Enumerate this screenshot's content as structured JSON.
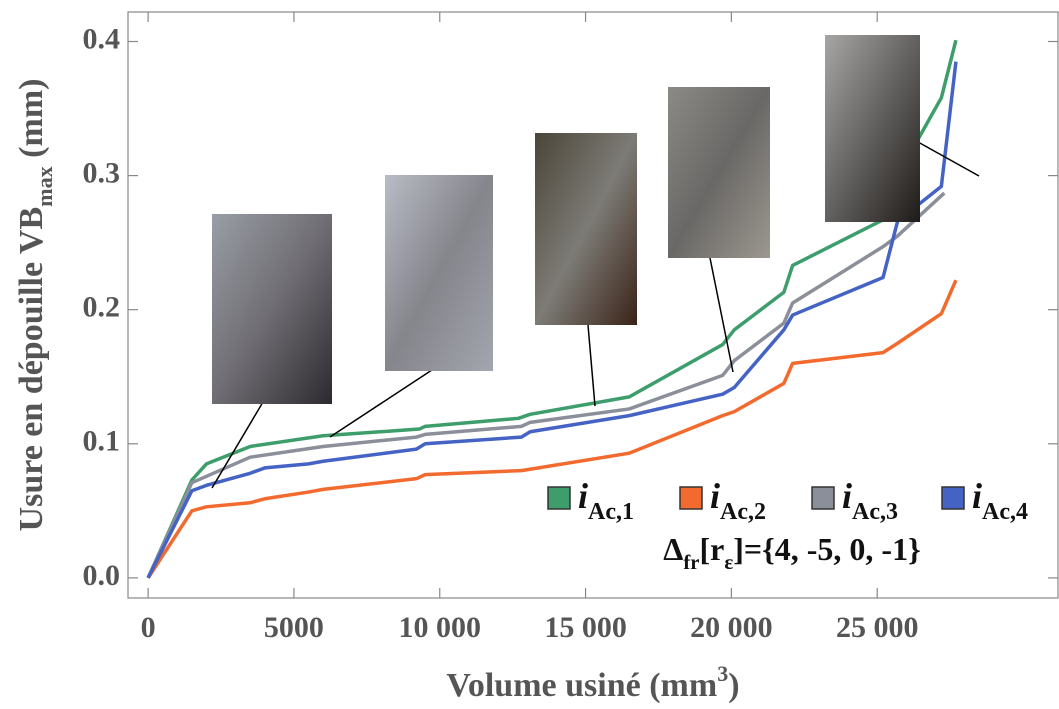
{
  "chart_data": {
    "type": "line",
    "x_label": [
      {
        "text": "Volume usiné (mm"
      },
      {
        "text": "3",
        "sup": true
      },
      {
        "text": ")"
      }
    ],
    "y_label": [
      {
        "text": "Usure en dépouille VB"
      },
      {
        "text": "max",
        "sub": true
      },
      {
        "text": " (mm)"
      }
    ],
    "annotation": [
      {
        "text": "Δ"
      },
      {
        "text": "fr",
        "sub": true
      },
      {
        "text": "[r"
      },
      {
        "text": "ε",
        "sub": true
      },
      {
        "text": "]={4, -5, 0, -1}"
      }
    ],
    "xlim": [
      -690,
      31200
    ],
    "ylim": [
      -0.015,
      0.422
    ],
    "xticks": [
      0,
      5000,
      {
        "value": 10000,
        "label": "10 000"
      },
      {
        "value": 15000,
        "label": "15 000"
      },
      {
        "value": 20000,
        "label": "20 000"
      },
      {
        "value": 25000,
        "label": "25 000"
      }
    ],
    "yticks": [
      {
        "value": 0,
        "label": "0.0"
      },
      0.1,
      0.2,
      0.3,
      0.4
    ],
    "series": [
      {
        "name": {
          "main": "i",
          "sub": "Ac,1"
        },
        "color": "#3d9e6c",
        "x": [
          0,
          1500,
          2000,
          3500,
          6000,
          9300,
          9500,
          12700,
          13100,
          16500,
          19700,
          20100,
          21800,
          22100,
          25200,
          25700,
          27200,
          27700
        ],
        "values": [
          0,
          0.073,
          0.085,
          0.098,
          0.106,
          0.111,
          0.113,
          0.119,
          0.122,
          0.135,
          0.174,
          0.185,
          0.213,
          0.233,
          0.267,
          0.3,
          0.358,
          0.401
        ]
      },
      {
        "name": {
          "main": "i",
          "sub": "Ac,2"
        },
        "color": "#f26a2e",
        "x": [
          0,
          1500,
          2000,
          3500,
          4000,
          5500,
          6000,
          9200,
          9500,
          12800,
          16500,
          19700,
          20100,
          21800,
          22100,
          25200,
          25700,
          27200,
          27700
        ],
        "values": [
          0,
          0.05,
          0.053,
          0.056,
          0.059,
          0.064,
          0.066,
          0.074,
          0.077,
          0.08,
          0.093,
          0.121,
          0.124,
          0.145,
          0.16,
          0.168,
          0.175,
          0.197,
          0.222
        ]
      },
      {
        "name": {
          "main": "i",
          "sub": "Ac,3"
        },
        "color": "#8a8f99",
        "x": [
          0,
          1500,
          3500,
          6000,
          9200,
          9500,
          12800,
          13100,
          16500,
          19700,
          20100,
          21800,
          22100,
          25200,
          25700,
          27300
        ],
        "values": [
          0,
          0.071,
          0.09,
          0.098,
          0.105,
          0.107,
          0.113,
          0.116,
          0.126,
          0.151,
          0.162,
          0.19,
          0.205,
          0.247,
          0.255,
          0.287
        ]
      },
      {
        "name": {
          "main": "i",
          "sub": "Ac,4"
        },
        "color": "#4563c4",
        "x": [
          0,
          1500,
          2000,
          3500,
          4000,
          5500,
          6000,
          9200,
          9500,
          12800,
          13100,
          16500,
          19700,
          20100,
          21800,
          22100,
          25200,
          25700,
          27200,
          27700
        ],
        "values": [
          0,
          0.065,
          0.069,
          0.078,
          0.082,
          0.085,
          0.087,
          0.096,
          0.1,
          0.105,
          0.109,
          0.121,
          0.137,
          0.142,
          0.185,
          0.196,
          0.224,
          0.266,
          0.292,
          0.385
        ]
      }
    ]
  }
}
